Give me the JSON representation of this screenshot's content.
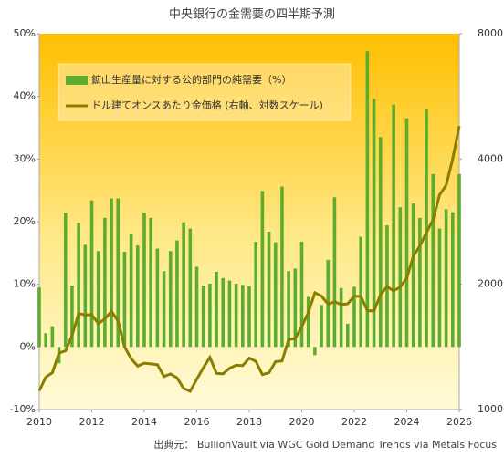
{
  "chart_data": {
    "type": "bar-line",
    "title": "中央銀行の金需要の四半期予測",
    "source": "出典元： BullionVault  via WGC Gold Demand Trends via Metals Focus",
    "x": [
      2010,
      2010.25,
      2010.5,
      2010.75,
      2011,
      2011.25,
      2011.5,
      2011.75,
      2012,
      2012.25,
      2012.5,
      2012.75,
      2013,
      2013.25,
      2013.5,
      2013.75,
      2014,
      2014.25,
      2014.5,
      2014.75,
      2015,
      2015.25,
      2015.5,
      2015.75,
      2016,
      2016.25,
      2016.5,
      2016.75,
      2017,
      2017.25,
      2017.5,
      2017.75,
      2018,
      2018.25,
      2018.5,
      2018.75,
      2019,
      2019.25,
      2019.5,
      2019.75,
      2020,
      2020.25,
      2020.5,
      2020.75,
      2021,
      2021.25,
      2021.5,
      2021.75,
      2022,
      2022.25,
      2022.5,
      2022.75,
      2023,
      2023.25,
      2023.5,
      2023.75,
      2024,
      2024.25,
      2024.5,
      2024.75,
      2025,
      2025.25,
      2025.5,
      2025.75,
      2026
    ],
    "series": [
      {
        "name": "鉱山生産量に対する公的部門の純需要（%）",
        "type": "bar",
        "color": "#5cac2e",
        "values": [
          9.5,
          2.2,
          3.3,
          -2.6,
          21.4,
          9.8,
          19.8,
          16.3,
          23.4,
          15.3,
          20.6,
          23.7,
          23.7,
          15.2,
          18.1,
          16.2,
          21.4,
          20.6,
          15.7,
          12.1,
          15.3,
          17.0,
          19.9,
          18.9,
          12.8,
          9.8,
          10.1,
          12.0,
          11.0,
          10.6,
          10.1,
          9.9,
          9.7,
          16.8,
          24.9,
          18.4,
          16.7,
          25.6,
          12.1,
          12.5,
          16.8,
          8.0,
          -1.3,
          6.7,
          13.9,
          23.9,
          9.4,
          3.7,
          9.6,
          17.6,
          47.2,
          39.6,
          33.5,
          19.4,
          38.7,
          22.3,
          36.5,
          22.9,
          20.6,
          37.9,
          27.6,
          18.9,
          22.0,
          21.5,
          27.6
        ]
      },
      {
        "name": "ドル建てオンスあたり金価格 (右軸、対数スケール)",
        "type": "line",
        "axis": "y2",
        "color": "#8a7d00",
        "values": [
          1109,
          1197,
          1227,
          1367,
          1384,
          1506,
          1702,
          1688,
          1691,
          1609,
          1652,
          1722,
          1632,
          1415,
          1326,
          1272,
          1293,
          1288,
          1282,
          1201,
          1218,
          1192,
          1124,
          1106,
          1183,
          1260,
          1335,
          1222,
          1219,
          1257,
          1278,
          1276,
          1329,
          1306,
          1213,
          1226,
          1304,
          1309,
          1472,
          1481,
          1583,
          1711,
          1909,
          1874,
          1794,
          1816,
          1789,
          1795,
          1874,
          1871,
          1729,
          1726,
          1890,
          1976,
          1928,
          1971,
          2070,
          2338,
          2474,
          2663,
          2860,
          3280,
          3457,
          4000,
          4800
        ]
      }
    ],
    "xlim": [
      2010,
      2026
    ],
    "xticks": [
      2010,
      2012,
      2014,
      2016,
      2018,
      2020,
      2022,
      2024,
      2026
    ],
    "ylim": [
      -10,
      50
    ],
    "yticks": [
      {
        "value": -10,
        "label": "-10%"
      },
      {
        "value": 0,
        "label": "0%"
      },
      {
        "value": 10,
        "label": "10%"
      },
      {
        "value": 20,
        "label": "20%"
      },
      {
        "value": 30,
        "label": "30%"
      },
      {
        "value": 40,
        "label": "40%"
      },
      {
        "value": 50,
        "label": "50%"
      }
    ],
    "y2lim": [
      1000,
      8000
    ],
    "y2ticks": [
      1000,
      2000,
      4000,
      8000
    ],
    "y2log": true
  }
}
